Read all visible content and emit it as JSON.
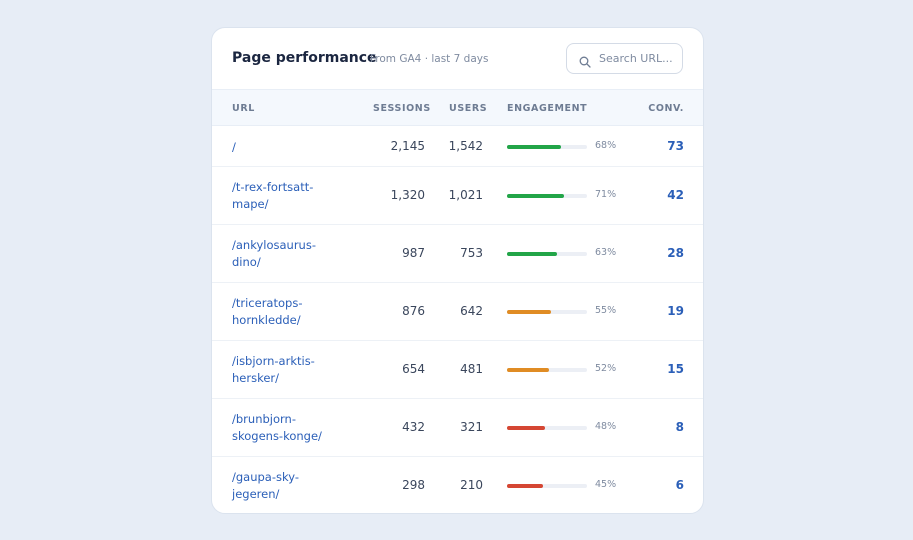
{
  "header": {
    "title": "Page performance",
    "subtitle": "From GA4 · last 7 days",
    "search_placeholder": "Search URL..."
  },
  "columns": {
    "url": "URL",
    "sessions": "SESSIONS",
    "users": "USERS",
    "engagement": "ENGAGEMENT",
    "conv": "CONV."
  },
  "colors": {
    "high": "#22a548",
    "mid": "#e08c24",
    "low": "#d54633"
  },
  "rows": [
    {
      "url_line1": "/",
      "url_line2": "",
      "sessions": "2,145",
      "users": "1,542",
      "engagement_pct": 68,
      "engagement_label": "68%",
      "conv": "73",
      "level": "high"
    },
    {
      "url_line1": "/t-rex-fortsatt-",
      "url_line2": "mape/",
      "sessions": "1,320",
      "users": "1,021",
      "engagement_pct": 71,
      "engagement_label": "71%",
      "conv": "42",
      "level": "high"
    },
    {
      "url_line1": "/ankylosaurus-",
      "url_line2": "dino/",
      "sessions": "987",
      "users": "753",
      "engagement_pct": 63,
      "engagement_label": "63%",
      "conv": "28",
      "level": "high"
    },
    {
      "url_line1": "/triceratops-",
      "url_line2": "hornkledde/",
      "sessions": "876",
      "users": "642",
      "engagement_pct": 55,
      "engagement_label": "55%",
      "conv": "19",
      "level": "mid"
    },
    {
      "url_line1": "/isbjorn-arktis-",
      "url_line2": "hersker/",
      "sessions": "654",
      "users": "481",
      "engagement_pct": 52,
      "engagement_label": "52%",
      "conv": "15",
      "level": "mid"
    },
    {
      "url_line1": "/brunbjorn-",
      "url_line2": "skogens-konge/",
      "sessions": "432",
      "users": "321",
      "engagement_pct": 48,
      "engagement_label": "48%",
      "conv": "8",
      "level": "low"
    },
    {
      "url_line1": "/gaupa-sky-",
      "url_line2": "jegeren/",
      "sessions": "298",
      "users": "210",
      "engagement_pct": 45,
      "engagement_label": "45%",
      "conv": "6",
      "level": "low"
    }
  ]
}
